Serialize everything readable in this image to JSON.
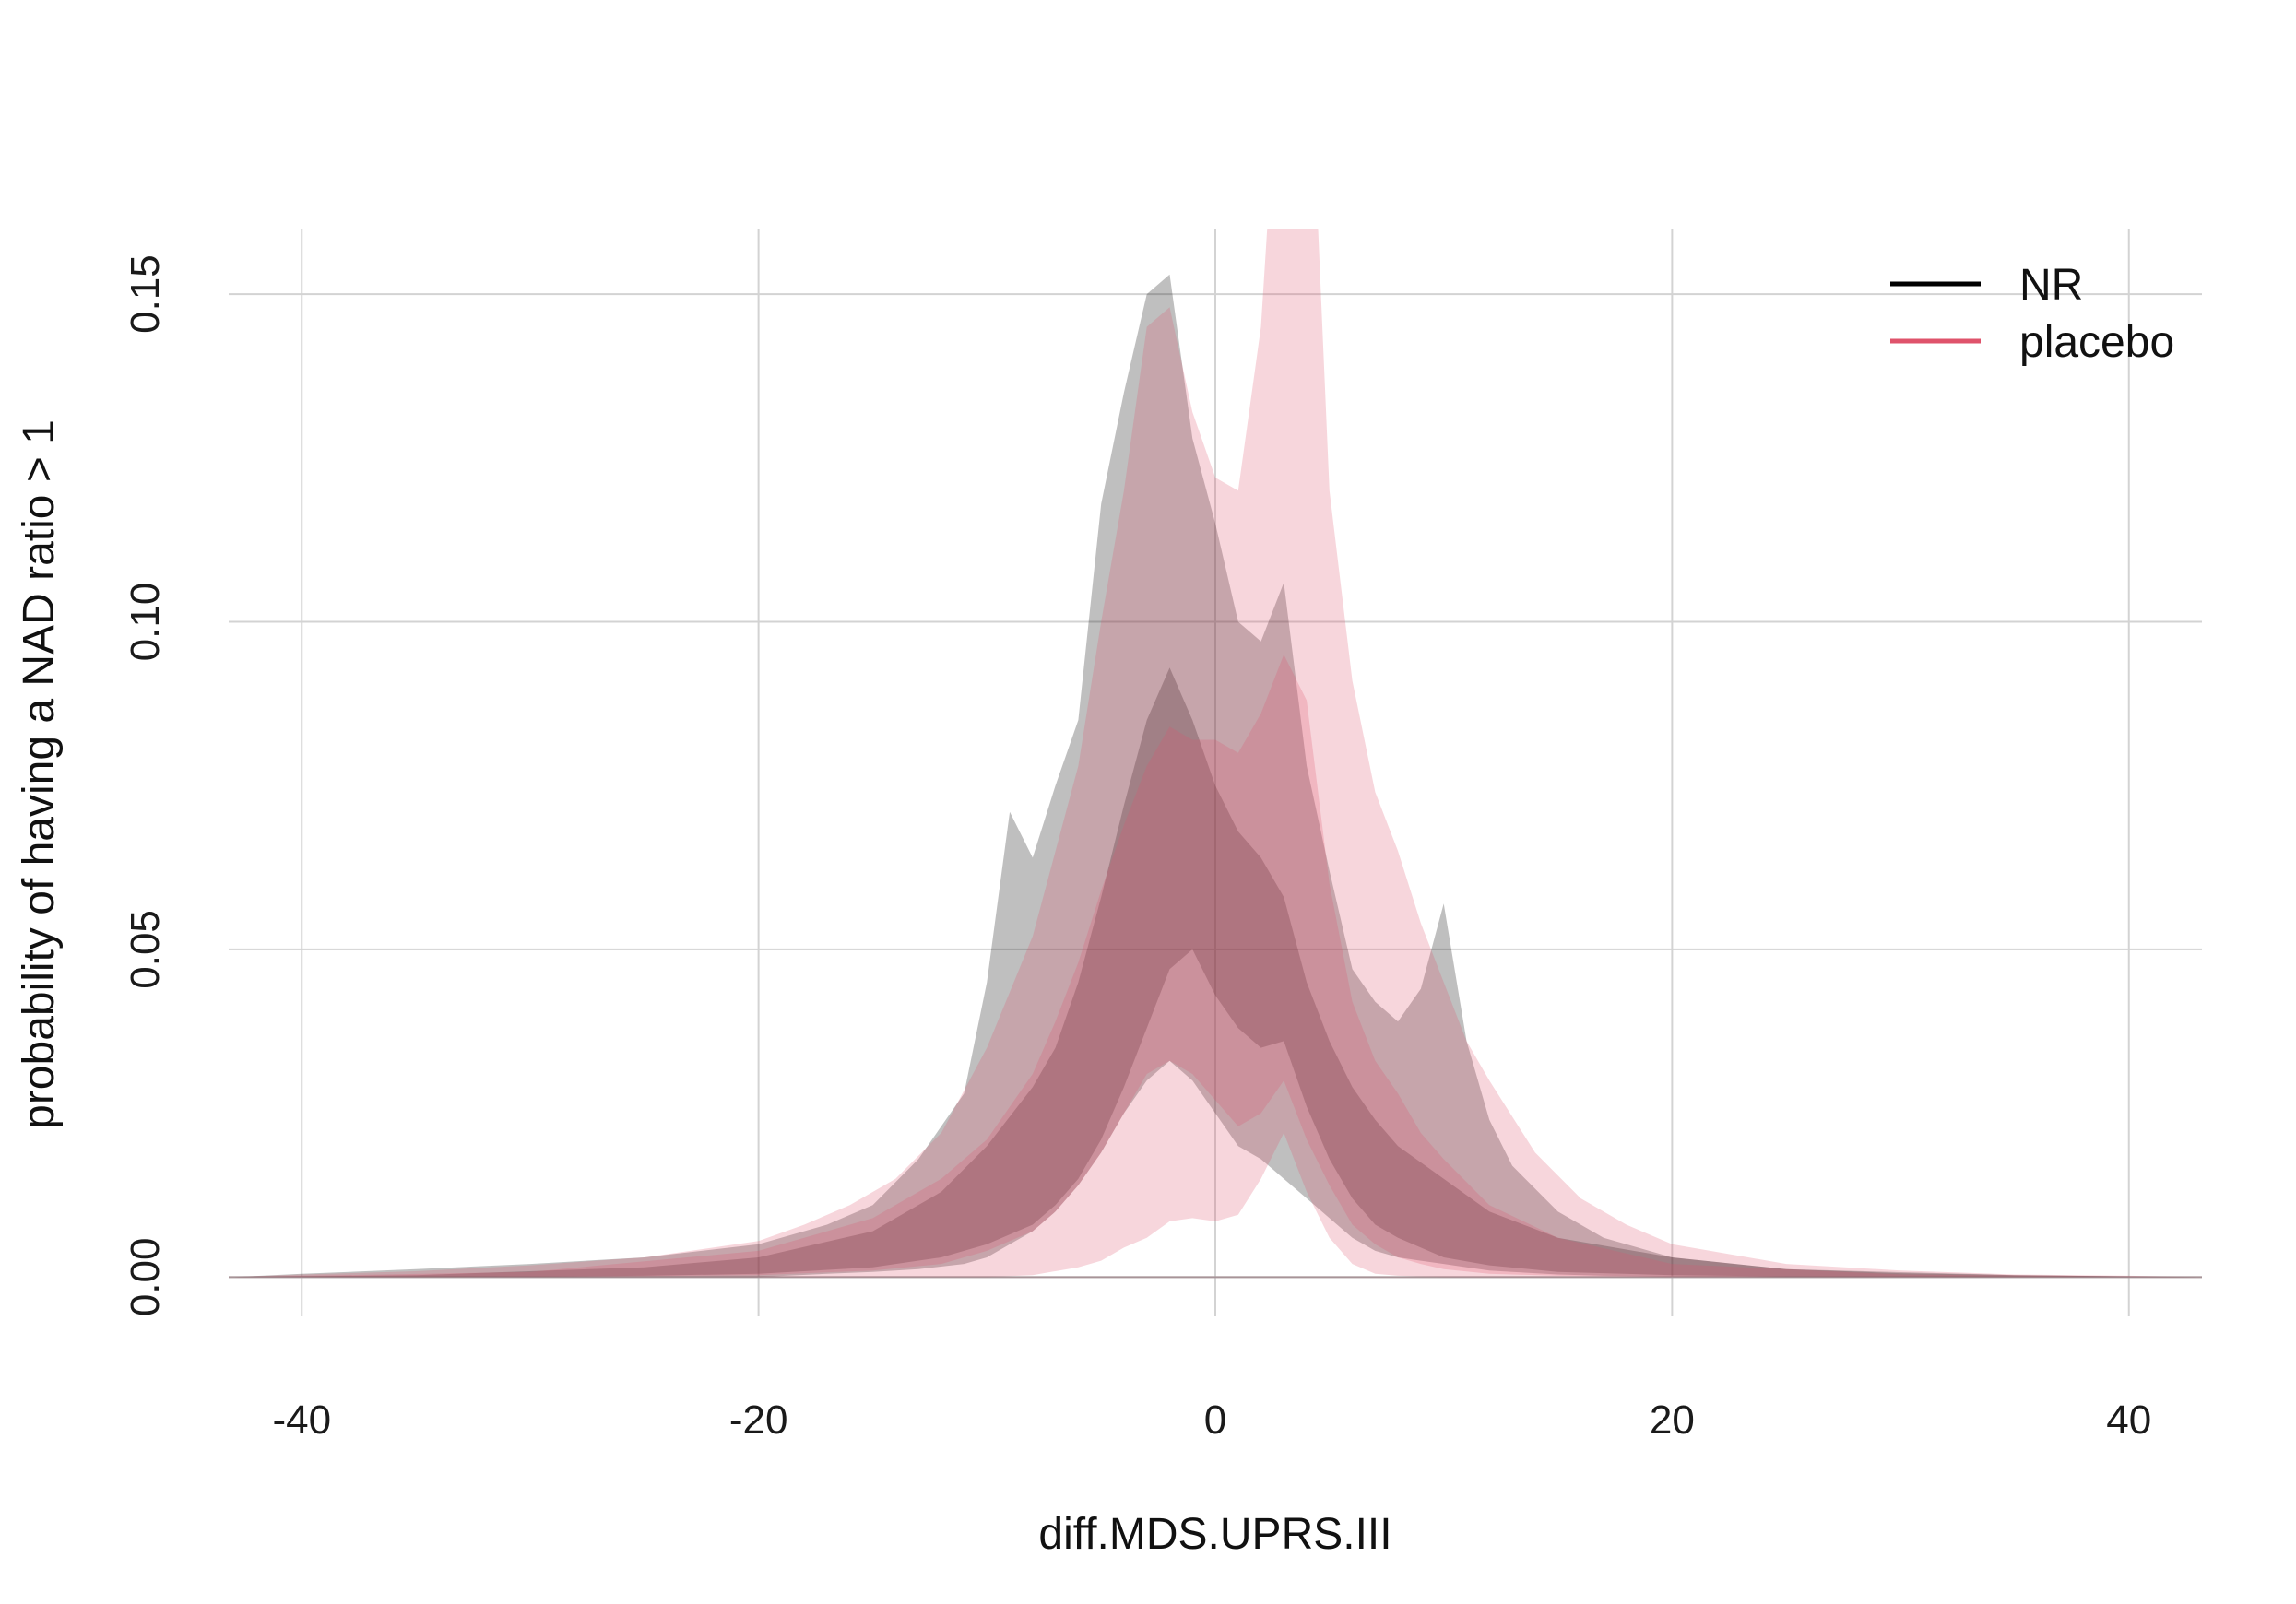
{
  "chart_data": {
    "type": "area",
    "xlabel": "diff.MDS.UPRS.III",
    "ylabel": "probability of having a NAD ratio > 1",
    "xlim": [
      -43.2,
      43.2
    ],
    "ylim": [
      -0.006,
      0.16
    ],
    "x_ticks": [
      -40,
      -20,
      0,
      20,
      40
    ],
    "x_tick_labels": [
      "-40",
      "-20",
      "0",
      "20",
      "40"
    ],
    "y_ticks": [
      0,
      0.05,
      0.1,
      0.15
    ],
    "y_tick_labels": [
      "0.00",
      "0.05",
      "0.10",
      "0.15"
    ],
    "grid": true,
    "legend_position": "top-right",
    "colors": {
      "NR": "#000000",
      "placebo": "#DF536B"
    },
    "series": [
      {
        "name": "NR",
        "color": "#000000",
        "bands": [
          {
            "level": "outer",
            "x": [
              -43,
              -40,
              -35,
              -30,
              -25,
              -20,
              -17,
              -15,
              -13,
              -11,
              -10,
              -9,
              -8,
              -7,
              -6,
              -5,
              -4,
              -3,
              -2,
              -1,
              0,
              1,
              2,
              3,
              4,
              5,
              6,
              7,
              8,
              9,
              10,
              11,
              12,
              13,
              15,
              17,
              20,
              25,
              30,
              35,
              40,
              43
            ],
            "upper": [
              0,
              0.0005,
              0.0012,
              0.002,
              0.003,
              0.005,
              0.008,
              0.011,
              0.018,
              0.028,
              0.045,
              0.071,
              0.064,
              0.075,
              0.085,
              0.118,
              0.135,
              0.15,
              0.153,
              0.128,
              0.115,
              0.1,
              0.097,
              0.106,
              0.078,
              0.062,
              0.047,
              0.042,
              0.039,
              0.044,
              0.057,
              0.036,
              0.024,
              0.017,
              0.01,
              0.006,
              0.003,
              0.0012,
              0.0006,
              0.0003,
              0.0001,
              0
            ],
            "lower": [
              0,
              0,
              0,
              0,
              0,
              0,
              0.0005,
              0.0008,
              0.0012,
              0.002,
              0.003,
              0.005,
              0.007,
              0.01,
              0.014,
              0.019,
              0.025,
              0.03,
              0.033,
              0.03,
              0.025,
              0.02,
              0.018,
              0.015,
              0.012,
              0.009,
              0.006,
              0.004,
              0.003,
              0.0025,
              0.002,
              0.0015,
              0.001,
              0.0008,
              0.0004,
              0.0002,
              0.0001,
              0,
              0,
              0,
              0,
              0
            ]
          },
          {
            "level": "inner",
            "x": [
              -43,
              -35,
              -25,
              -20,
              -15,
              -12,
              -10,
              -8,
              -7,
              -6,
              -5,
              -4,
              -3,
              -2,
              -1,
              0,
              1,
              2,
              3,
              4,
              5,
              6,
              7,
              8,
              10,
              12,
              15,
              20,
              25,
              35,
              43
            ],
            "upper": [
              0,
              0.0003,
              0.0015,
              0.003,
              0.007,
              0.013,
              0.02,
              0.029,
              0.035,
              0.045,
              0.058,
              0.072,
              0.085,
              0.093,
              0.085,
              0.075,
              0.068,
              0.064,
              0.058,
              0.045,
              0.036,
              0.029,
              0.024,
              0.02,
              0.015,
              0.01,
              0.006,
              0.003,
              0.0012,
              0.0003,
              0
            ],
            "lower": [
              0,
              0,
              0.0002,
              0.0005,
              0.0015,
              0.003,
              0.005,
              0.008,
              0.011,
              0.015,
              0.021,
              0.029,
              0.038,
              0.047,
              0.05,
              0.043,
              0.038,
              0.035,
              0.036,
              0.026,
              0.018,
              0.012,
              0.008,
              0.006,
              0.003,
              0.0018,
              0.0008,
              0.0003,
              0.0001,
              0,
              0
            ]
          }
        ]
      },
      {
        "name": "placebo",
        "color": "#DF536B",
        "bands": [
          {
            "level": "outer",
            "x": [
              -43,
              -40,
              -35,
              -30,
              -25,
              -20,
              -18,
              -16,
              -14,
              -12,
              -10,
              -8,
              -6,
              -5,
              -4,
              -3,
              -2,
              -1,
              0,
              1,
              2,
              3,
              4,
              5,
              6,
              7,
              8,
              9,
              10,
              11,
              12,
              14,
              16,
              18,
              20,
              25,
              30,
              35,
              40,
              43
            ],
            "upper": [
              0,
              0.0004,
              0.0009,
              0.0018,
              0.003,
              0.0055,
              0.008,
              0.011,
              0.015,
              0.022,
              0.035,
              0.052,
              0.078,
              0.1,
              0.12,
              0.145,
              0.148,
              0.132,
              0.122,
              0.12,
              0.145,
              0.2,
              0.2,
              0.12,
              0.091,
              0.074,
              0.065,
              0.054,
              0.045,
              0.036,
              0.03,
              0.019,
              0.012,
              0.008,
              0.005,
              0.002,
              0.001,
              0.0004,
              0.0002,
              0
            ],
            "lower": [
              0,
              0,
              0,
              0,
              0,
              0,
              0,
              0,
              0,
              0,
              0,
              0.0003,
              0.0015,
              0.0025,
              0.0045,
              0.006,
              0.0085,
              0.009,
              0.0085,
              0.0095,
              0.015,
              0.022,
              0.013,
              0.006,
              0.002,
              0.0005,
              0.0002,
              0.0001,
              0,
              0,
              0,
              0,
              0,
              0,
              0,
              0,
              0,
              0,
              0,
              0
            ]
          },
          {
            "level": "inner",
            "x": [
              -43,
              -30,
              -20,
              -15,
              -12,
              -10,
              -8,
              -7,
              -6,
              -5,
              -4,
              -3,
              -2,
              -1,
              0,
              1,
              2,
              3,
              4,
              5,
              6,
              7,
              8,
              9,
              10,
              12,
              15,
              20,
              30,
              43
            ],
            "upper": [
              0,
              0.0008,
              0.004,
              0.009,
              0.015,
              0.021,
              0.031,
              0.039,
              0.048,
              0.059,
              0.069,
              0.078,
              0.084,
              0.082,
              0.082,
              0.08,
              0.086,
              0.095,
              0.088,
              0.06,
              0.042,
              0.033,
              0.028,
              0.022,
              0.018,
              0.011,
              0.006,
              0.002,
              0.0004,
              0
            ],
            "lower": [
              0,
              0,
              0.0003,
              0.001,
              0.002,
              0.004,
              0.007,
              0.01,
              0.014,
              0.019,
              0.025,
              0.031,
              0.033,
              0.031,
              0.027,
              0.023,
              0.025,
              0.03,
              0.021,
              0.014,
              0.008,
              0.005,
              0.003,
              0.002,
              0.0012,
              0.0005,
              0.0002,
              0,
              0,
              0
            ]
          }
        ]
      }
    ]
  }
}
